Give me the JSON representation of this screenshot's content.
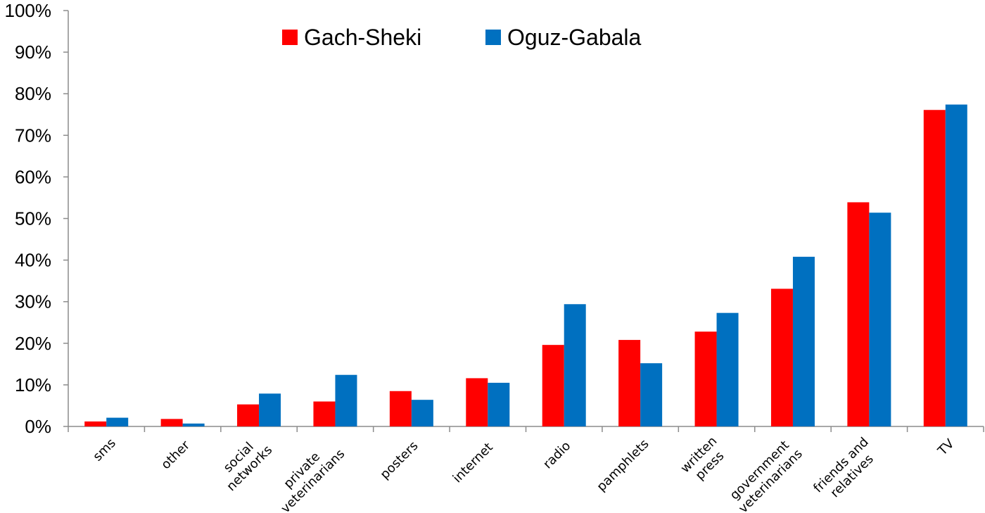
{
  "chart_data": {
    "type": "bar",
    "title": "",
    "xlabel": "",
    "ylabel": "",
    "ylim": [
      0,
      100
    ],
    "y_ticks": [
      "0%",
      "10%",
      "20%",
      "30%",
      "40%",
      "50%",
      "60%",
      "70%",
      "80%",
      "90%",
      "100%"
    ],
    "grid": false,
    "legend_position": "top-center",
    "categories": [
      [
        "sms"
      ],
      [
        "other"
      ],
      [
        "social",
        "networks"
      ],
      [
        "private",
        "veterinarians"
      ],
      [
        "posters"
      ],
      [
        "internet"
      ],
      [
        "radio"
      ],
      [
        "pamphlets"
      ],
      [
        "written",
        "press"
      ],
      [
        "government",
        "veterinarians"
      ],
      [
        "friends and",
        "relatives"
      ],
      [
        "TV"
      ]
    ],
    "series": [
      {
        "name": "Gach-Sheki",
        "color": "#ff0000",
        "values": [
          1.2,
          1.8,
          5.3,
          6.0,
          8.5,
          11.6,
          19.6,
          20.8,
          22.8,
          33.1,
          53.9,
          76.1
        ]
      },
      {
        "name": "Oguz-Gabala",
        "color": "#0070c0",
        "values": [
          2.1,
          0.7,
          7.9,
          12.4,
          6.4,
          10.5,
          29.4,
          15.2,
          27.3,
          40.8,
          51.4,
          77.4
        ]
      }
    ]
  }
}
